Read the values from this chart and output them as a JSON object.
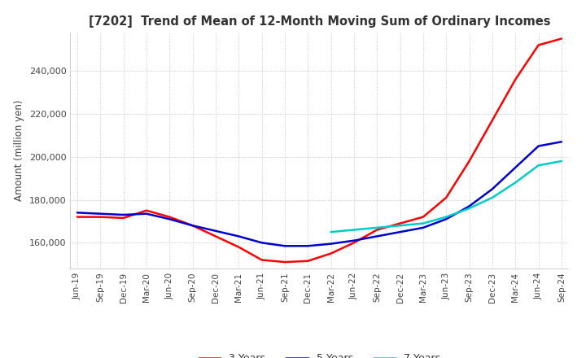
{
  "title": "[7202]  Trend of Mean of 12-Month Moving Sum of Ordinary Incomes",
  "ylabel": "Amount (million yen)",
  "ylim": [
    148000,
    258000
  ],
  "yticks": [
    160000,
    180000,
    200000,
    220000,
    240000
  ],
  "background_color": "#ffffff",
  "grid_color": "#aaaaaa",
  "lines": {
    "3 Years": {
      "color": "#ff0000",
      "lw": 1.8
    },
    "5 Years": {
      "color": "#0000cc",
      "lw": 1.8
    },
    "7 Years": {
      "color": "#00cccc",
      "lw": 1.8
    },
    "10 Years": {
      "color": "#008000",
      "lw": 1.8
    }
  },
  "x_labels": [
    "Jun-19",
    "Sep-19",
    "Dec-19",
    "Mar-20",
    "Jun-20",
    "Sep-20",
    "Dec-20",
    "Mar-21",
    "Jun-21",
    "Sep-21",
    "Dec-21",
    "Mar-22",
    "Jun-22",
    "Sep-22",
    "Dec-22",
    "Mar-23",
    "Jun-23",
    "Sep-23",
    "Dec-23",
    "Mar-24",
    "Jun-24",
    "Sep-24"
  ],
  "data_3y": [
    172000,
    172000,
    171500,
    175000,
    172000,
    168000,
    163000,
    158000,
    152000,
    151000,
    151500,
    155000,
    160000,
    166000,
    169000,
    172000,
    181000,
    198000,
    217000,
    236000,
    252000,
    255000
  ],
  "data_5y": [
    174000,
    173500,
    173000,
    173500,
    171000,
    168000,
    165500,
    163000,
    160000,
    158500,
    158500,
    159500,
    161000,
    163000,
    165000,
    167000,
    171000,
    177000,
    185000,
    195000,
    205000,
    207000
  ],
  "data_7y": [
    null,
    null,
    null,
    null,
    null,
    null,
    null,
    null,
    null,
    null,
    null,
    165000,
    166000,
    167000,
    168000,
    169000,
    172000,
    176000,
    181000,
    188000,
    196000,
    198000
  ],
  "data_10y": [
    null,
    null,
    null,
    null,
    null,
    null,
    null,
    null,
    null,
    null,
    null,
    null,
    null,
    null,
    null,
    null,
    null,
    null,
    null,
    null,
    null,
    null
  ]
}
